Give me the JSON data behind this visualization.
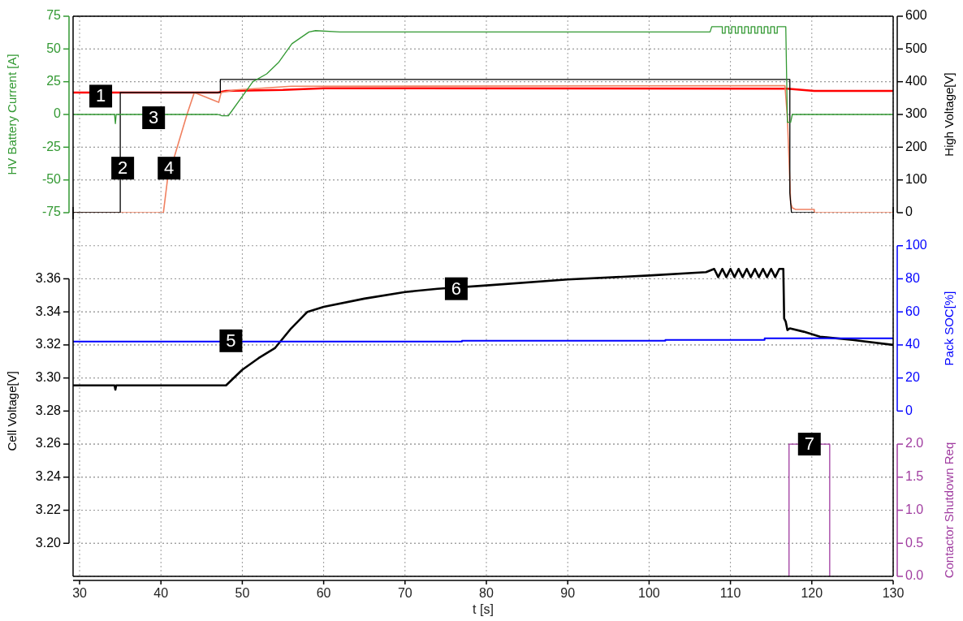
{
  "chart_data": [
    {
      "type": "line",
      "ylabel": "HV Battery Current [A]",
      "y2label": "High Voltage[V]",
      "tick_labels": "y",
      "xlim": [
        29.2,
        130
      ],
      "xticks": [
        30,
        40,
        50,
        60,
        70,
        80,
        90,
        100,
        110,
        120,
        130
      ],
      "ylim": [
        -75,
        75
      ],
      "yticks": [
        -75,
        -50,
        -25,
        0,
        25,
        50,
        75
      ],
      "y2lim": [
        0,
        600
      ],
      "y2ticks": [
        0,
        100,
        200,
        300,
        400,
        500,
        600
      ],
      "grid": true,
      "series": [
        {
          "color": "#339933",
          "x": [
            29.2,
            34.3,
            34.4,
            34.5,
            47,
            47.5,
            48.3,
            48.4,
            51.3,
            53,
            54.5,
            56.1,
            58.2,
            59,
            62,
            107.5,
            107.7,
            109,
            109,
            109.35,
            109.35,
            109.8,
            109.8,
            110.15,
            110.15,
            110.6,
            110.6,
            110.95,
            110.95,
            111.4,
            111.4,
            111.75,
            111.75,
            112.2,
            112.2,
            112.55,
            112.55,
            113,
            113,
            113.35,
            113.35,
            113.8,
            113.8,
            114.15,
            114.15,
            114.6,
            114.6,
            114.95,
            114.95,
            115.4,
            115.4,
            115.75,
            115.75,
            116.8,
            117,
            117.4,
            117.6,
            130
          ],
          "values": [
            0,
            0,
            -7,
            0,
            0,
            -1,
            -1,
            0,
            25,
            31,
            40,
            54,
            63,
            64,
            63,
            63,
            67,
            67,
            62,
            62,
            67,
            67,
            62,
            62,
            67,
            67,
            62,
            62,
            67,
            67,
            62,
            62,
            67,
            67,
            62,
            62,
            67,
            67,
            62,
            62,
            67,
            67,
            62,
            62,
            67,
            67,
            62,
            62,
            67,
            67,
            62,
            62,
            67,
            67,
            -6,
            -6,
            0,
            0
          ]
        },
        {
          "color": "#000000",
          "axis": "y2",
          "x": [
            29.2,
            35,
            35,
            47.3,
            47.3,
            117.3,
            117.3,
            117.5,
            120.3
          ],
          "values": [
            0,
            0,
            367,
            367,
            407,
            407,
            60,
            0,
            0
          ]
        },
        {
          "color": "#f08060",
          "axis": "y2",
          "x": [
            29.2,
            40.3,
            40.8,
            42,
            43.2,
            44.1,
            47.1,
            47.4,
            49.2,
            56,
            116.7,
            117,
            117.4,
            117.6,
            118,
            120.3,
            120.3,
            130
          ],
          "values": [
            0,
            0,
            100,
            200,
            300,
            367,
            337,
            367,
            375,
            386,
            388,
            290,
            30,
            15,
            10,
            10,
            0,
            0
          ]
        },
        {
          "color": "#ff0000",
          "axis": "y2",
          "x": [
            29.2,
            47,
            48,
            55,
            60,
            117,
            120.3,
            130
          ],
          "values": [
            367,
            367,
            372,
            375,
            380,
            379,
            372,
            372
          ]
        }
      ],
      "annotations": [
        {
          "text": "1",
          "x": 32.6,
          "y": 14
        },
        {
          "text": "2",
          "x": 35.3,
          "y": -41
        },
        {
          "text": "3",
          "x": 39.1,
          "y": -2.5
        },
        {
          "text": "4",
          "x": 41,
          "y": -41
        }
      ]
    },
    {
      "type": "line",
      "xlabel": "t [s]",
      "ylabel": "Cell Voltage[V]",
      "y2label": "Pack SOC[%]",
      "y3label": "Contactor Shutdown Req",
      "xlim": [
        29.2,
        130
      ],
      "xticks": [
        30,
        40,
        50,
        60,
        70,
        80,
        90,
        100,
        110,
        120,
        130
      ],
      "ylim": [
        3.18,
        3.4
      ],
      "yticks": [
        {
          "value": 3.2,
          "label": "3.20"
        },
        {
          "value": 3.22,
          "label": "3.22"
        },
        {
          "value": 3.24,
          "label": "3.24"
        },
        {
          "value": 3.26,
          "label": "3.26"
        },
        {
          "value": 3.28,
          "label": "3.28"
        },
        {
          "value": 3.3,
          "label": "3.30"
        },
        {
          "value": 3.32,
          "label": "3.32"
        },
        {
          "value": 3.34,
          "label": "3.34"
        },
        {
          "value": 3.36,
          "label": "3.36"
        }
      ],
      "y2lim": [
        0,
        100
      ],
      "y2ticks": [
        0,
        20,
        40,
        60,
        80,
        100
      ],
      "y3lim": [
        0,
        2
      ],
      "y3ticks": [
        {
          "value": 0,
          "label": "0.0"
        },
        {
          "value": 0.5,
          "label": "0.5"
        },
        {
          "value": 1,
          "label": "1.0"
        },
        {
          "value": 1.5,
          "label": "1.5"
        },
        {
          "value": 2,
          "label": "2.0"
        }
      ],
      "grid": true,
      "series": [
        {
          "color": "#0000ff",
          "axis": "y2",
          "x": [
            29.2,
            77,
            77,
            102,
            102,
            114.2,
            114.2,
            130
          ],
          "values": [
            42,
            42,
            42.5,
            42.5,
            43,
            43,
            44,
            44
          ]
        },
        {
          "color": "#000000",
          "x": [
            29.2,
            34.3,
            34.4,
            34.5,
            48,
            50,
            52,
            54,
            56,
            58,
            60,
            65,
            70,
            74,
            80,
            90,
            100,
            107,
            108,
            108.5,
            109,
            109.5,
            110,
            110.5,
            111,
            111.5,
            112,
            112.5,
            113,
            113.5,
            114,
            114.5,
            115,
            115.5,
            116,
            116.5,
            116.6,
            116.8,
            117,
            117.3,
            119,
            121,
            125,
            130
          ],
          "values": [
            3.2955,
            3.2955,
            3.293,
            3.2955,
            3.2955,
            3.305,
            3.312,
            3.318,
            3.33,
            3.34,
            3.343,
            3.348,
            3.352,
            3.354,
            3.356,
            3.3596,
            3.362,
            3.364,
            3.366,
            3.361,
            3.366,
            3.361,
            3.366,
            3.361,
            3.366,
            3.361,
            3.366,
            3.361,
            3.366,
            3.361,
            3.366,
            3.361,
            3.366,
            3.361,
            3.366,
            3.366,
            3.336,
            3.334,
            3.329,
            3.33,
            3.328,
            3.325,
            3.323,
            3.32
          ]
        },
        {
          "color": "#a03ca0",
          "axis": "y3",
          "x": [
            117.2,
            117.2,
            122.2,
            122.2
          ],
          "values": [
            0,
            2,
            2,
            0
          ]
        }
      ],
      "annotations": [
        {
          "text": "5",
          "x": 48.6,
          "y": 3.3225
        },
        {
          "text": "6",
          "x": 76.3,
          "y": 3.354
        },
        {
          "text": "7",
          "x": 119.7,
          "y": 3.26
        }
      ]
    }
  ]
}
